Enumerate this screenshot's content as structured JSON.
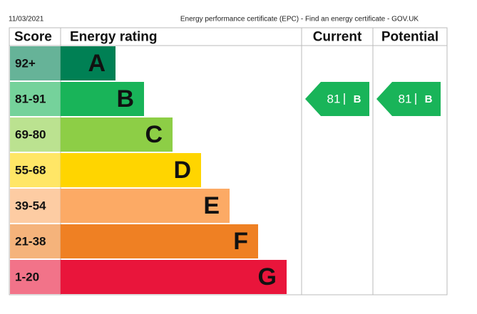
{
  "header": {
    "date": "11/03/2021",
    "page_title": "Energy performance certificate (EPC) - Find an energy certificate - GOV.UK"
  },
  "table": {
    "columns": [
      "Score",
      "Energy rating",
      "Current",
      "Potential"
    ],
    "rows": [
      {
        "score": "92+",
        "band": "A",
        "color": "#008054"
      },
      {
        "score": "81-91",
        "band": "B",
        "color": "#19b459"
      },
      {
        "score": "69-80",
        "band": "C",
        "color": "#8dce46"
      },
      {
        "score": "55-68",
        "band": "D",
        "color": "#ffd500"
      },
      {
        "score": "39-54",
        "band": "E",
        "color": "#fcaa65"
      },
      {
        "score": "21-38",
        "band": "F",
        "color": "#ef8023"
      },
      {
        "score": "1-20",
        "band": "G",
        "color": "#e9153b"
      }
    ],
    "current": {
      "value": 81,
      "band": "B"
    },
    "potential": {
      "value": 81,
      "band": "B"
    }
  }
}
